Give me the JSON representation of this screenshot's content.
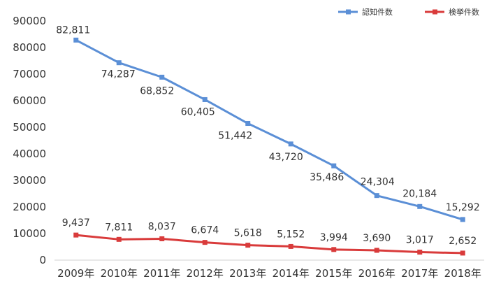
{
  "chart_data": {
    "type": "line",
    "title": "",
    "xlabel": "",
    "ylabel": "",
    "categories": [
      "2009年",
      "2010年",
      "2011年",
      "2012年",
      "2013年",
      "2014年",
      "2015年",
      "2016年",
      "2017年",
      "2018年"
    ],
    "ylim": [
      0,
      90000
    ],
    "yticks": [
      "0",
      "10000",
      "20000",
      "30000",
      "40000",
      "50000",
      "60000",
      "70000",
      "80000",
      "90000"
    ],
    "grid": false,
    "legend_position": "top-right",
    "series": [
      {
        "name": "認知件数",
        "color": "#5b8fd6",
        "values": [
          82811,
          74287,
          68852,
          60405,
          51442,
          43720,
          35486,
          24304,
          20184,
          15292
        ],
        "labels": [
          "82,811",
          "74,287",
          "68,852",
          "60,405",
          "51,442",
          "43,720",
          "35,486",
          "24,304",
          "20,184",
          "15,292"
        ]
      },
      {
        "name": "検挙件数",
        "color": "#d93b3b",
        "values": [
          9437,
          7811,
          8037,
          6674,
          5618,
          5152,
          3994,
          3690,
          3017,
          2652
        ],
        "labels": [
          "9,437",
          "7,811",
          "8,037",
          "6,674",
          "5,618",
          "5,152",
          "3,994",
          "3,690",
          "3,017",
          "2,652"
        ]
      }
    ]
  }
}
